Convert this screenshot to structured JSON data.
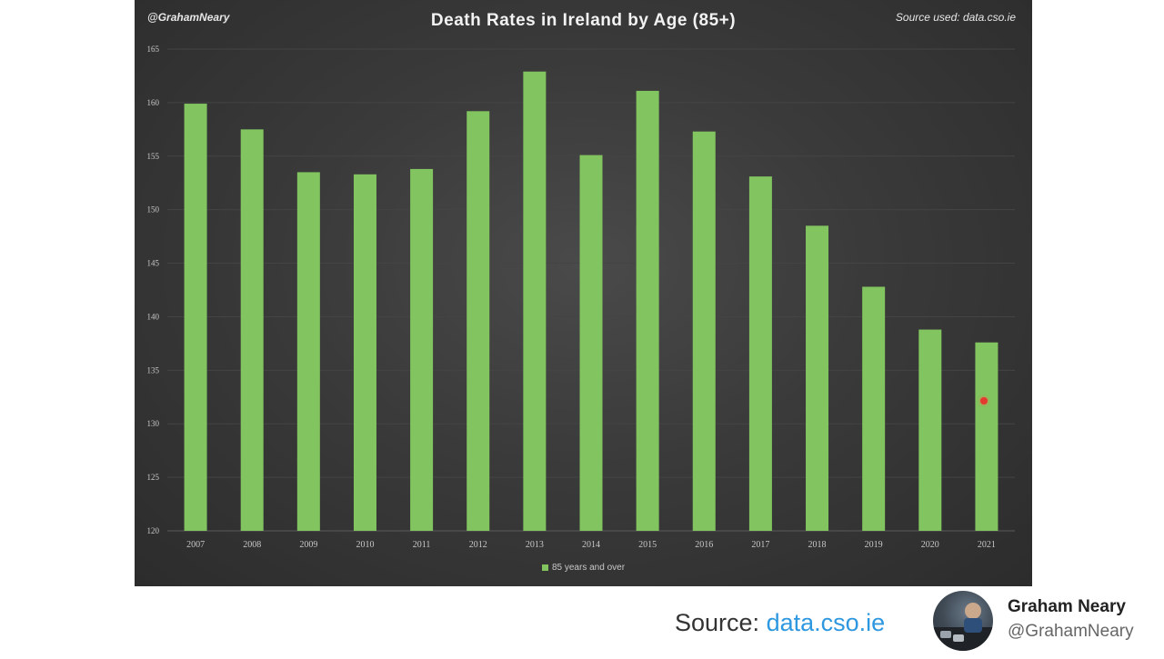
{
  "header": {
    "handle": "@GrahamNeary",
    "source": "Source used: data.cso.ie"
  },
  "chart_data": {
    "type": "bar",
    "title": "Death Rates in Ireland by Age (85+)",
    "categories": [
      "2007",
      "2008",
      "2009",
      "2010",
      "2011",
      "2012",
      "2013",
      "2014",
      "2015",
      "2016",
      "2017",
      "2018",
      "2019",
      "2020",
      "2021"
    ],
    "series": [
      {
        "name": "85 years and over",
        "values": [
          159.9,
          157.5,
          153.5,
          153.3,
          153.8,
          159.2,
          162.9,
          155.1,
          161.1,
          157.3,
          153.1,
          148.5,
          142.8,
          138.8,
          137.6
        ]
      }
    ],
    "yticks": [
      120,
      125,
      130,
      135,
      140,
      145,
      150,
      155,
      160,
      165
    ],
    "ylim": [
      120,
      165
    ],
    "xlabel": "",
    "ylabel": "",
    "grid": true,
    "legend_position": "bottom",
    "bar_color": "#82c45f",
    "background_color": "#3a3a3a"
  },
  "footer": {
    "source_prefix": "Source: ",
    "source_link": "data.cso.ie",
    "author_name": "Graham Neary",
    "author_handle": "@GrahamNeary"
  }
}
